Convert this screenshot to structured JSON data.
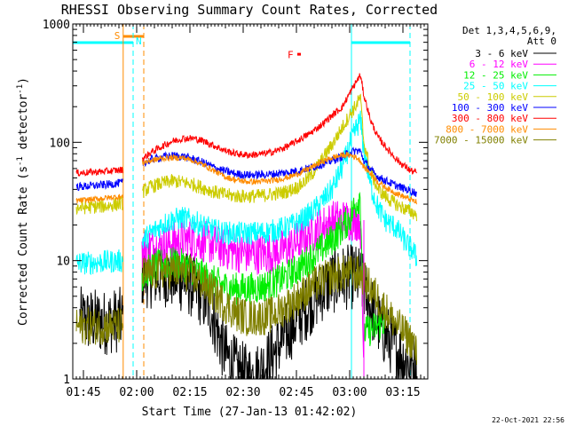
{
  "chart_data": {
    "type": "line",
    "title": "RHESSI Observing Summary Count Rates, Corrected",
    "xlabel": "Start Time (27-Jan-13 01:42:02)",
    "ylabel": "Corrected Count Rate (s",
    "ylabel_sup1": "-1",
    "ylabel_mid": " detector",
    "ylabel_sup2": "-1",
    "ylabel_end": ")",
    "yscale": "log",
    "ylim": [
      1,
      1000
    ],
    "xlim_minutes": [
      102,
      202
    ],
    "y_ticks": [
      {
        "v": 1,
        "label": "1"
      },
      {
        "v": 10,
        "label": "10"
      },
      {
        "v": 100,
        "label": "100"
      },
      {
        "v": 1000,
        "label": "1000"
      }
    ],
    "x_ticks": [
      {
        "t": 105,
        "label": "01:45"
      },
      {
        "t": 120,
        "label": "02:00"
      },
      {
        "t": 135,
        "label": "02:15"
      },
      {
        "t": 150,
        "label": "02:30"
      },
      {
        "t": 165,
        "label": "02:45"
      },
      {
        "t": 180,
        "label": "03:00"
      },
      {
        "t": 195,
        "label": "03:15"
      }
    ],
    "legend_header": [
      "Det 1,3,4,5,6,9,",
      "Att 0"
    ],
    "legend_position": "right",
    "series": [
      {
        "name": "3 - 6 keV",
        "color": "#000000",
        "points": [
          [
            104,
            3.2
          ],
          [
            108,
            3.1
          ],
          [
            111,
            3.0
          ],
          [
            116,
            3.2
          ],
          [
            121.5,
            7.5
          ],
          [
            125,
            7.4
          ],
          [
            128,
            7.6
          ],
          [
            132,
            7.0
          ],
          [
            135,
            6.3
          ],
          [
            138,
            5.2
          ],
          [
            141,
            3.8
          ],
          [
            143,
            2.4
          ],
          [
            145,
            1.6
          ],
          [
            148,
            1.2
          ],
          [
            151,
            1.05
          ],
          [
            154,
            1.1
          ],
          [
            157,
            1.4
          ],
          [
            160,
            1.9
          ],
          [
            163,
            2.6
          ],
          [
            166,
            3.4
          ],
          [
            169,
            4.4
          ],
          [
            172,
            5.6
          ],
          [
            175,
            6.6
          ],
          [
            178,
            7.2
          ],
          [
            181,
            7.3
          ],
          [
            183,
            7.0
          ],
          [
            186,
            4.0
          ],
          [
            189,
            2.6
          ],
          [
            193,
            1.8
          ],
          [
            196,
            1.4
          ],
          [
            199,
            1.3
          ]
        ]
      },
      {
        "name": "6 - 12 keV",
        "color": "#ff00ff",
        "points": [
          [
            121.5,
            12.5
          ],
          [
            125,
            13.2
          ],
          [
            128,
            13.6
          ],
          [
            131,
            14.5
          ],
          [
            134,
            15.0
          ],
          [
            137,
            15.0
          ],
          [
            140,
            14.2
          ],
          [
            143,
            13.2
          ],
          [
            146,
            12.3
          ],
          [
            149,
            11.8
          ],
          [
            152,
            11.5
          ],
          [
            155,
            11.5
          ],
          [
            158,
            11.6
          ],
          [
            161,
            12.2
          ],
          [
            164,
            13.5
          ],
          [
            167,
            15.5
          ],
          [
            170,
            17.5
          ],
          [
            173,
            20
          ],
          [
            176,
            22
          ],
          [
            179,
            22
          ],
          [
            181,
            22
          ],
          [
            183,
            22
          ],
          [
            184,
            1.2
          ]
        ]
      },
      {
        "name": "12 - 25 keV",
        "color": "#00ee00",
        "points": [
          [
            121.5,
            7.5
          ],
          [
            124,
            8.5
          ],
          [
            127,
            9.2
          ],
          [
            130,
            9.5
          ],
          [
            133,
            9.2
          ],
          [
            136,
            8.4
          ],
          [
            139,
            7.4
          ],
          [
            142,
            6.6
          ],
          [
            145,
            6.0
          ],
          [
            148,
            5.8
          ],
          [
            151,
            5.8
          ],
          [
            154,
            5.9
          ],
          [
            157,
            6.2
          ],
          [
            160,
            6.8
          ],
          [
            163,
            7.6
          ],
          [
            166,
            8.8
          ],
          [
            169,
            10.5
          ],
          [
            172,
            12.5
          ],
          [
            175,
            15
          ],
          [
            178,
            19
          ],
          [
            180,
            23
          ],
          [
            182,
            31
          ],
          [
            183,
            36
          ],
          [
            184,
            2.5
          ],
          [
            186,
            2.6
          ],
          [
            188,
            2.8
          ],
          [
            190,
            3.1
          ]
        ]
      },
      {
        "name": "25 - 50 keV",
        "color": "#00ffff",
        "points": [
          [
            103,
            9.5
          ],
          [
            108,
            9.6
          ],
          [
            112,
            9.8
          ],
          [
            117,
            10.0
          ],
          [
            121.5,
            14.5
          ],
          [
            124,
            17
          ],
          [
            127,
            20
          ],
          [
            130,
            22
          ],
          [
            133,
            23
          ],
          [
            136,
            21.5
          ],
          [
            139,
            19.5
          ],
          [
            142,
            18
          ],
          [
            145,
            17.2
          ],
          [
            148,
            17.0
          ],
          [
            151,
            17.0
          ],
          [
            154,
            17.2
          ],
          [
            157,
            17.5
          ],
          [
            160,
            18.3
          ],
          [
            163,
            19.5
          ],
          [
            166,
            21.5
          ],
          [
            169,
            25
          ],
          [
            172,
            31
          ],
          [
            175,
            40
          ],
          [
            178,
            62
          ],
          [
            180,
            95
          ],
          [
            182,
            135
          ],
          [
            183,
            155
          ],
          [
            184,
            85
          ],
          [
            186,
            42
          ],
          [
            188,
            28
          ],
          [
            190,
            22
          ],
          [
            193,
            19
          ],
          [
            196,
            14
          ],
          [
            198,
            12
          ],
          [
            199,
            10
          ]
        ]
      },
      {
        "name": "50 - 100 keV",
        "color": "#cccc00",
        "points": [
          [
            103,
            28
          ],
          [
            108,
            28.5
          ],
          [
            112,
            29
          ],
          [
            117,
            31
          ],
          [
            121.5,
            38
          ],
          [
            124,
            42
          ],
          [
            127,
            45
          ],
          [
            130,
            47
          ],
          [
            133,
            46
          ],
          [
            136,
            44
          ],
          [
            139,
            41
          ],
          [
            142,
            38
          ],
          [
            145,
            36
          ],
          [
            148,
            35
          ],
          [
            151,
            35
          ],
          [
            154,
            35.2
          ],
          [
            157,
            36
          ],
          [
            160,
            37
          ],
          [
            163,
            39
          ],
          [
            166,
            43
          ],
          [
            169,
            52
          ],
          [
            172,
            70
          ],
          [
            175,
            95
          ],
          [
            178,
            135
          ],
          [
            180,
            170
          ],
          [
            182,
            210
          ],
          [
            183,
            240
          ],
          [
            184,
            100
          ],
          [
            186,
            55
          ],
          [
            188,
            40
          ],
          [
            191,
            33
          ],
          [
            194,
            29
          ],
          [
            197,
            26
          ],
          [
            199,
            24.5
          ]
        ]
      },
      {
        "name": "100 - 300 keV",
        "color": "#0000ff",
        "points": [
          [
            103,
            42
          ],
          [
            108,
            43
          ],
          [
            112,
            44
          ],
          [
            117,
            46
          ],
          [
            121.5,
            66
          ],
          [
            124,
            71
          ],
          [
            127,
            75
          ],
          [
            130,
            77
          ],
          [
            133,
            76
          ],
          [
            136,
            72
          ],
          [
            139,
            67
          ],
          [
            142,
            61
          ],
          [
            145,
            57
          ],
          [
            148,
            54
          ],
          [
            151,
            53
          ],
          [
            154,
            53
          ],
          [
            157,
            53.5
          ],
          [
            160,
            54.5
          ],
          [
            163,
            56
          ],
          [
            166,
            58
          ],
          [
            169,
            61
          ],
          [
            172,
            65
          ],
          [
            175,
            70
          ],
          [
            178,
            76
          ],
          [
            180,
            82
          ],
          [
            182,
            85
          ],
          [
            183,
            84
          ],
          [
            184,
            70
          ],
          [
            186,
            58
          ],
          [
            188,
            51
          ],
          [
            191,
            46
          ],
          [
            194,
            42
          ],
          [
            197,
            39
          ],
          [
            199,
            37
          ]
        ]
      },
      {
        "name": "300 - 800 keV",
        "color": "#ff0000",
        "points": [
          [
            103,
            55
          ],
          [
            108,
            56
          ],
          [
            112,
            57
          ],
          [
            117,
            59
          ],
          [
            121.5,
            72
          ],
          [
            124,
            82
          ],
          [
            127,
            92
          ],
          [
            130,
            102
          ],
          [
            133,
            108
          ],
          [
            136,
            108
          ],
          [
            139,
            102
          ],
          [
            142,
            93
          ],
          [
            145,
            85
          ],
          [
            148,
            80
          ],
          [
            151,
            78
          ],
          [
            154,
            79
          ],
          [
            157,
            81
          ],
          [
            160,
            86
          ],
          [
            163,
            94
          ],
          [
            166,
            106
          ],
          [
            169,
            120
          ],
          [
            172,
            140
          ],
          [
            175,
            168
          ],
          [
            178,
            200
          ],
          [
            180,
            260
          ],
          [
            182,
            330
          ],
          [
            183,
            370
          ],
          [
            184,
            250
          ],
          [
            186,
            150
          ],
          [
            188,
            110
          ],
          [
            191,
            85
          ],
          [
            194,
            68
          ],
          [
            197,
            58
          ],
          [
            199,
            55
          ]
        ]
      },
      {
        "name": "800 - 7000 keV",
        "color": "#ff8c00",
        "points": [
          [
            103,
            32
          ],
          [
            108,
            33
          ],
          [
            112,
            34
          ],
          [
            117,
            35
          ],
          [
            121.5,
            67
          ],
          [
            124,
            70
          ],
          [
            127,
            73
          ],
          [
            130,
            74
          ],
          [
            133,
            74
          ],
          [
            136,
            70
          ],
          [
            139,
            64
          ],
          [
            142,
            57
          ],
          [
            145,
            51
          ],
          [
            148,
            48
          ],
          [
            151,
            46.5
          ],
          [
            154,
            46.5
          ],
          [
            157,
            47
          ],
          [
            160,
            48.5
          ],
          [
            163,
            51
          ],
          [
            166,
            55
          ],
          [
            169,
            61
          ],
          [
            172,
            68
          ],
          [
            175,
            74
          ],
          [
            178,
            78
          ],
          [
            180,
            78
          ],
          [
            182,
            74
          ],
          [
            183,
            70
          ],
          [
            184,
            62
          ],
          [
            186,
            54
          ],
          [
            188,
            46
          ],
          [
            191,
            40
          ],
          [
            194,
            36
          ],
          [
            197,
            33
          ],
          [
            199,
            31
          ]
        ]
      },
      {
        "name": "7000 - 15000 keV",
        "color": "#808000",
        "points": [
          [
            103,
            2.8
          ],
          [
            108,
            2.8
          ],
          [
            112,
            2.8
          ],
          [
            117,
            2.8
          ],
          [
            121.5,
            7.5
          ],
          [
            124,
            7.8
          ],
          [
            127,
            8.2
          ],
          [
            130,
            8.2
          ],
          [
            133,
            8.0
          ],
          [
            136,
            7.4
          ],
          [
            139,
            6.3
          ],
          [
            142,
            5.2
          ],
          [
            145,
            4.2
          ],
          [
            148,
            3.6
          ],
          [
            151,
            3.3
          ],
          [
            154,
            3.3
          ],
          [
            157,
            3.4
          ],
          [
            160,
            3.7
          ],
          [
            163,
            4.3
          ],
          [
            166,
            5.0
          ],
          [
            169,
            5.9
          ],
          [
            172,
            6.8
          ],
          [
            175,
            7.4
          ],
          [
            178,
            7.8
          ],
          [
            181,
            7.8
          ],
          [
            183,
            7.6
          ],
          [
            186,
            5.8
          ],
          [
            189,
            4.3
          ],
          [
            192,
            3.2
          ],
          [
            195,
            2.5
          ],
          [
            198,
            2.0
          ],
          [
            199,
            1.5
          ]
        ]
      }
    ],
    "annotations": {
      "S_label": "S",
      "N_label": "N",
      "F_label": "F",
      "saa_segments": [
        {
          "start": 116.2,
          "end": 122
        }
      ],
      "night_segments": [
        {
          "start": 102,
          "end": 119
        },
        {
          "start": 180.5,
          "end": 197
        }
      ],
      "solid_lines": [
        {
          "t": 116.2,
          "color": "#ff8c00"
        },
        {
          "t": 180.5,
          "color": "#00ffff"
        }
      ],
      "dashed_lines": [
        {
          "t": 119,
          "color": "#00ffff"
        },
        {
          "t": 122,
          "color": "#ff8c00"
        },
        {
          "t": 197,
          "color": "#00ffff"
        }
      ],
      "magenta_line_t": 184,
      "flare_marker": {
        "t": 165,
        "y": 550
      }
    },
    "footer_text": "22-Oct-2021 22:56"
  }
}
